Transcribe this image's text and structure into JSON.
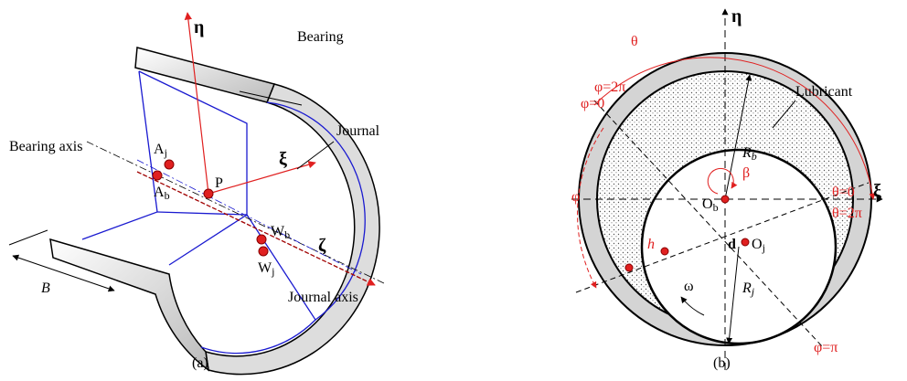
{
  "panel_a": {
    "caption": "(a)",
    "eta": "η",
    "bearing": "Bearing",
    "journal": "Journal",
    "bearing_axis": "Bearing axis",
    "A_j": {
      "base": "A",
      "sub": "j"
    },
    "A_b": {
      "base": "A",
      "sub": "b"
    },
    "P": "P",
    "xi": "ξ",
    "W_b": {
      "base": "W",
      "sub": "b"
    },
    "W_j": {
      "base": "W",
      "sub": "j"
    },
    "zeta": "ζ",
    "journal_axis": "Journal axis",
    "B": "B"
  },
  "panel_b": {
    "caption": "(b)",
    "eta": "η",
    "theta": "θ",
    "lubricant": "Lubricant",
    "phi_2pi": "φ=2π",
    "phi_0": "φ=0",
    "phi": "φ",
    "R_b": {
      "base": "R",
      "sub": "b"
    },
    "beta": "β",
    "theta_0": "θ=0",
    "xi": "ξ",
    "theta_2pi": "θ=2π",
    "O_b": {
      "base": "O",
      "sub": "b"
    },
    "d": "d",
    "O_j": {
      "base": "O",
      "sub": "j"
    },
    "h": "h",
    "omega": "ω",
    "R_j": {
      "base": "R",
      "sub": "j"
    },
    "phi_pi": "φ=π"
  }
}
